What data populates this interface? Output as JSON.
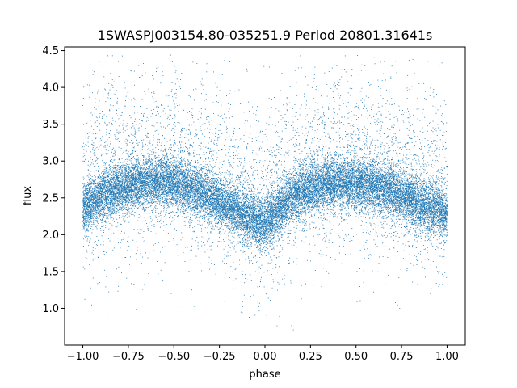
{
  "chart_data": {
    "type": "scatter",
    "title": "1SWASPJ003154.80-035251.9 Period 20801.31641s",
    "xlabel": "phase",
    "ylabel": "flux",
    "xlim": [
      -1.1,
      1.1
    ],
    "ylim": [
      0.5,
      4.55
    ],
    "xticks": [
      -1.0,
      -0.75,
      -0.5,
      -0.25,
      0.0,
      0.25,
      0.5,
      0.75,
      1.0
    ],
    "xtick_labels": [
      "−1.00",
      "−0.75",
      "−0.50",
      "−0.25",
      "0.00",
      "0.25",
      "0.50",
      "0.75",
      "1.00"
    ],
    "yticks": [
      1.0,
      1.5,
      2.0,
      2.5,
      3.0,
      3.5,
      4.0,
      4.5
    ],
    "ytick_labels": [
      "1.0",
      "1.5",
      "2.0",
      "2.5",
      "3.0",
      "3.5",
      "4.0",
      "4.5"
    ],
    "grid": false,
    "marker_color": "#1f77b4",
    "phase_range": [
      -1.0,
      1.0
    ],
    "flux_range": [
      0.7,
      4.45
    ],
    "light_curve_profile": {
      "phase": [
        -1.0,
        -0.9,
        -0.8,
        -0.7,
        -0.6,
        -0.5,
        -0.4,
        -0.3,
        -0.2,
        -0.1,
        0.0,
        0.1,
        0.2,
        0.3,
        0.4,
        0.5,
        0.6,
        0.7,
        0.8,
        0.9,
        1.0
      ],
      "median_flux": [
        2.35,
        2.52,
        2.62,
        2.68,
        2.72,
        2.7,
        2.62,
        2.5,
        2.38,
        2.25,
        2.12,
        2.4,
        2.58,
        2.66,
        2.7,
        2.7,
        2.66,
        2.58,
        2.48,
        2.35,
        2.28
      ]
    },
    "scatter_width": 0.17,
    "outlier_fraction": 0.22,
    "n_points": 26000
  }
}
